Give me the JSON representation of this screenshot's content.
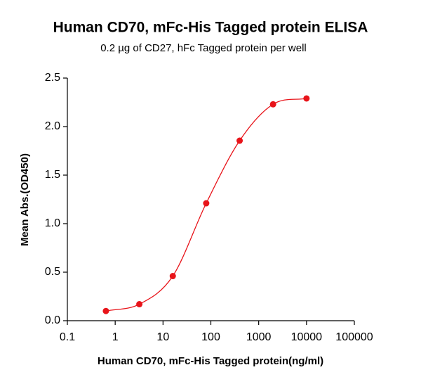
{
  "chart_data": {
    "type": "scatter",
    "title": "Human CD70, mFc-His Tagged protein ELISA",
    "subtitle": "0.2 µg of CD27, hFc Tagged protein per well",
    "x_label": "Human CD70, mFc-His Tagged protein(ng/ml)",
    "y_label": "Mean Abs.(OD450)",
    "x": [
      0.64,
      3.2,
      16,
      80,
      400,
      2000,
      10000
    ],
    "values": [
      0.1,
      0.17,
      0.46,
      1.21,
      1.855,
      2.23,
      2.29
    ],
    "color": "#e8141a",
    "xscale": "log",
    "xlim": [
      0.1,
      100000
    ],
    "xticks": [
      0.1,
      1,
      10,
      100,
      1000,
      10000,
      100000
    ],
    "ylim": [
      0,
      2.5
    ],
    "yticks": [
      {
        "value": 0,
        "label": "0.0"
      },
      {
        "value": 0.5,
        "label": "0.5"
      },
      {
        "value": 1,
        "label": "1.0"
      },
      {
        "value": 1.5,
        "label": "1.5"
      },
      {
        "value": 2,
        "label": "2.0"
      },
      {
        "value": 2.5,
        "label": "2.5"
      }
    ],
    "fit_line": true
  }
}
